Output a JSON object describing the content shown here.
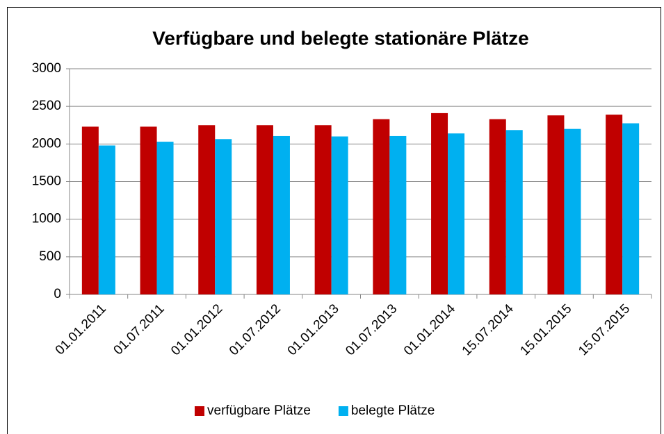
{
  "chart_data": {
    "type": "bar",
    "title": "Verfügbare und belegte stationäre Plätze",
    "categories": [
      "01.01.2011",
      "01.07.2011",
      "01.01.2012",
      "01.07.2012",
      "01.01.2013",
      "01.07.2013",
      "01.01.2014",
      "15.07.2014",
      "15.01.2015",
      "15.07.2015"
    ],
    "series": [
      {
        "name": "verfügbare Plätze",
        "color": "#c00000",
        "values": [
          2230,
          2230,
          2250,
          2250,
          2250,
          2330,
          2410,
          2330,
          2380,
          2390
        ]
      },
      {
        "name": "belegte Plätze",
        "color": "#00b0f0",
        "values": [
          1980,
          2030,
          2065,
          2105,
          2100,
          2105,
          2140,
          2185,
          2200,
          2275
        ]
      }
    ],
    "ylim": [
      0,
      3000
    ],
    "yticks": [
      0,
      500,
      1000,
      1500,
      2000,
      2500,
      3000
    ],
    "grid": true,
    "legend": "bottom"
  }
}
